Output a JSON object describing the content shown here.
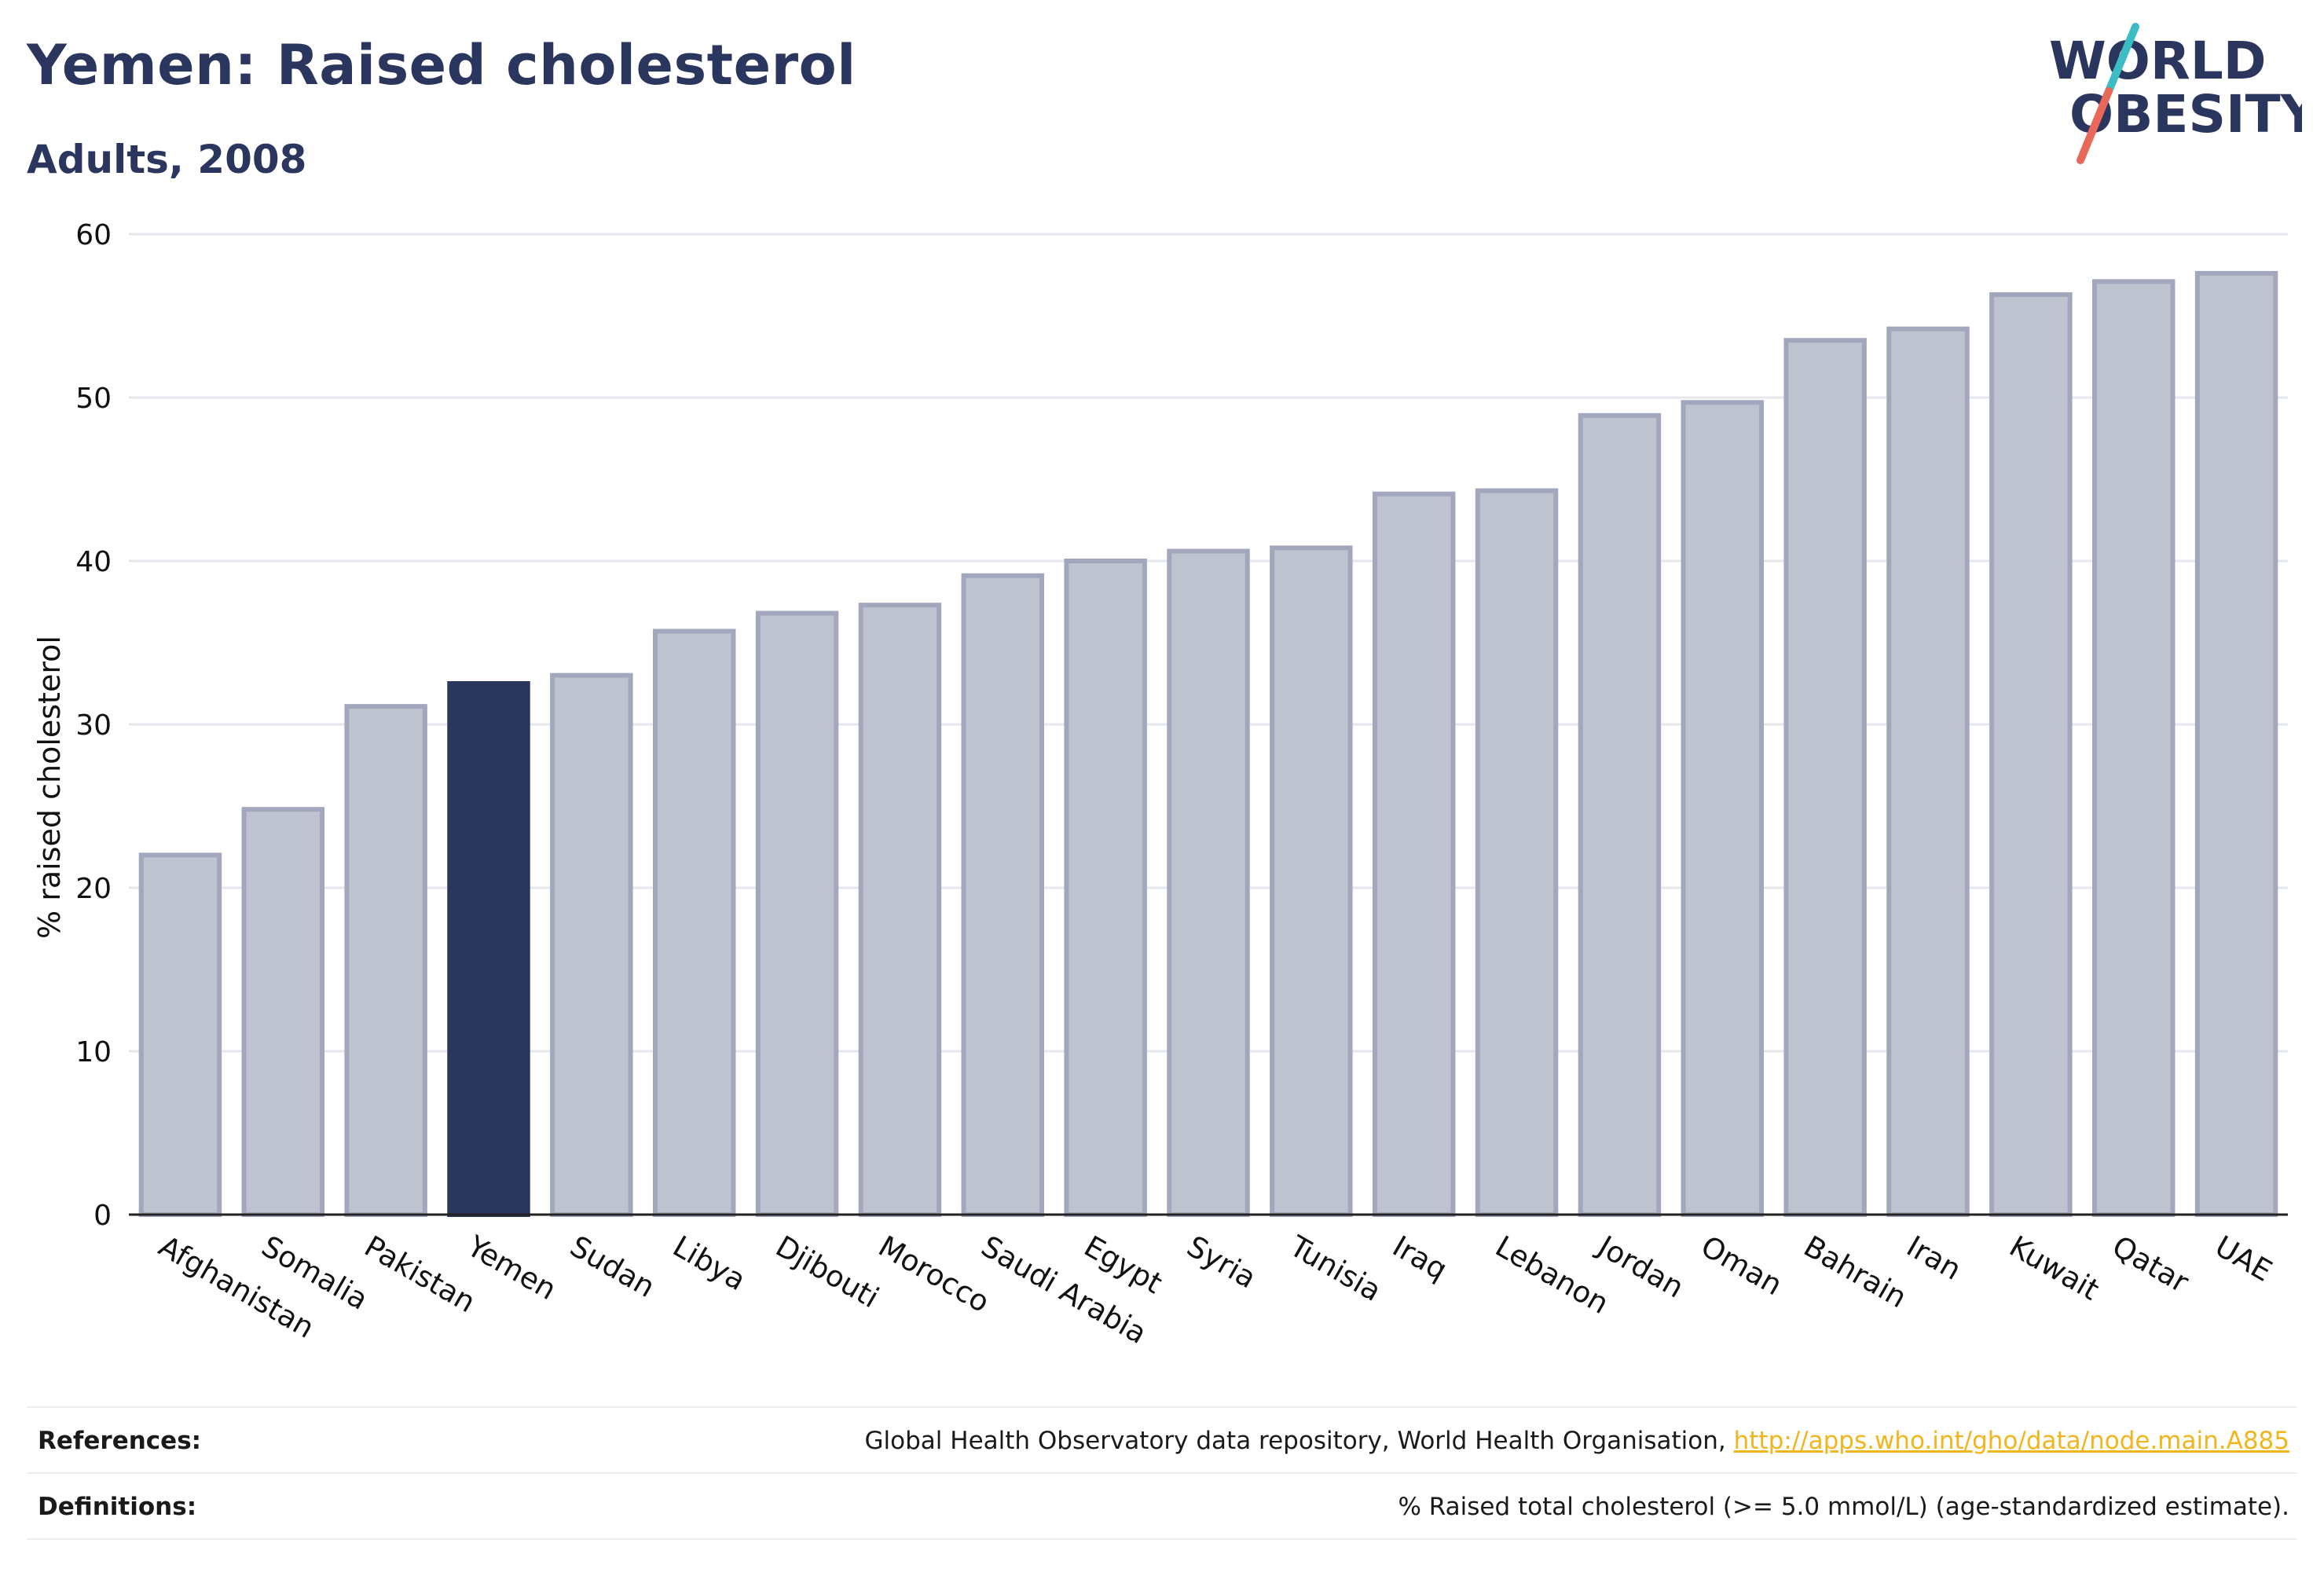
{
  "header": {
    "title": "Yemen: Raised cholesterol",
    "subtitle": "Adults, 2008"
  },
  "logo": {
    "line1": "WORLD",
    "line2": "OBESITY"
  },
  "colors": {
    "highlight": "#2b365e",
    "bar_fill": "#bfc3d0",
    "bar_stroke": "#a2a7bd",
    "text": "#2b365e",
    "link": "#f2b51d",
    "logo_teal": "#3cbcc3",
    "logo_red": "#e8685a"
  },
  "chart_data": {
    "type": "bar",
    "ylabel": "% raised cholesterol",
    "xlabel": "",
    "ylim": [
      0,
      60
    ],
    "yticks": [
      0,
      10,
      20,
      30,
      40,
      50,
      60
    ],
    "grid": true,
    "highlight_category": "Yemen",
    "categories": [
      "Afghanistan",
      "Somalia",
      "Pakistan",
      "Yemen",
      "Sudan",
      "Libya",
      "Djibouti",
      "Morocco",
      "Saudi Arabia",
      "Egypt",
      "Syria",
      "Tunisia",
      "Iraq",
      "Lebanon",
      "Jordan",
      "Oman",
      "Bahrain",
      "Iran",
      "Kuwait",
      "Qatar",
      "UAE"
    ],
    "values": [
      22.0,
      24.8,
      31.1,
      32.5,
      33.0,
      35.7,
      36.8,
      37.3,
      39.1,
      40.0,
      40.6,
      40.8,
      44.1,
      44.3,
      48.9,
      49.7,
      53.5,
      54.2,
      56.3,
      57.1,
      57.6
    ]
  },
  "footer": {
    "references_label": "References:",
    "references_text": "Global Health Observatory data repository, World Health Organisation, ",
    "references_link": "http://apps.who.int/gho/data/node.main.A885",
    "definitions_label": "Definitions:",
    "definitions_text": "% Raised total cholesterol (>= 5.0 mmol/L) (age-standardized estimate)."
  }
}
